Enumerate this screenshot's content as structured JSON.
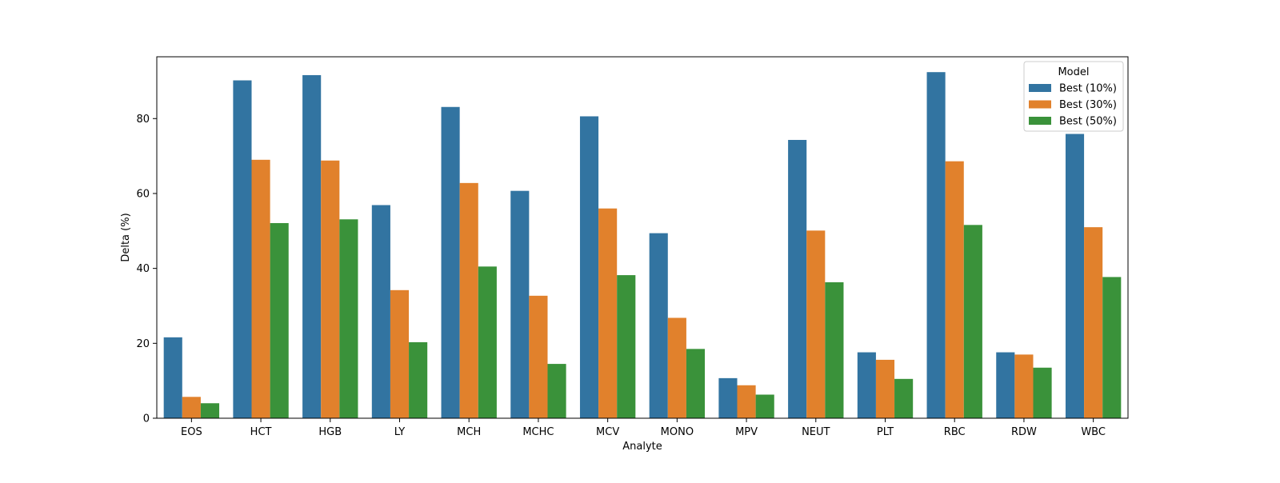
{
  "chart_data": {
    "type": "bar",
    "title": "",
    "xlabel": "Analyte",
    "ylabel": "Delta (%)",
    "ylim": [
      0,
      96.5
    ],
    "yticks": [
      0,
      20,
      40,
      60,
      80
    ],
    "grid": false,
    "categories": [
      "EOS",
      "HCT",
      "HGB",
      "LY",
      "MCH",
      "MCHC",
      "MCV",
      "MONO",
      "MPV",
      "NEUT",
      "PLT",
      "RBC",
      "RDW",
      "WBC"
    ],
    "legend": {
      "title": "Model",
      "placement": "top-right"
    },
    "series": [
      {
        "name": "Best (10%)",
        "color": "#3274a1",
        "values": [
          21.6,
          90.2,
          91.6,
          56.9,
          83.1,
          60.7,
          80.6,
          49.4,
          10.7,
          74.3,
          17.6,
          92.4,
          17.6,
          75.9
        ]
      },
      {
        "name": "Best (30%)",
        "color": "#e1812c",
        "values": [
          5.7,
          69.0,
          68.8,
          34.2,
          62.8,
          32.7,
          56.0,
          26.8,
          8.8,
          50.1,
          15.6,
          68.6,
          17.0,
          51.0
        ]
      },
      {
        "name": "Best (50%)",
        "color": "#3a923a",
        "values": [
          4.0,
          52.1,
          53.1,
          20.3,
          40.5,
          14.5,
          38.2,
          18.5,
          6.3,
          36.3,
          10.5,
          51.6,
          13.5,
          37.7
        ]
      }
    ]
  }
}
